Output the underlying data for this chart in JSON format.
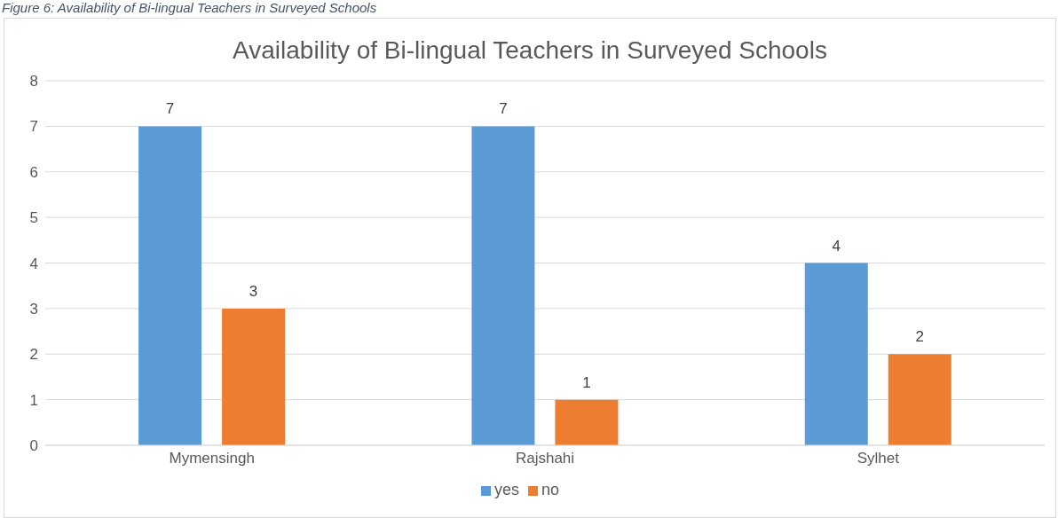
{
  "chart_data": {
    "type": "bar",
    "title": "Availability of Bi-lingual Teachers in Surveyed Schools",
    "annotations": [
      "Figure 6: Availability of Bi-lingual Teachers in Surveyed Schools"
    ],
    "categories": [
      "Mymensingh",
      "Rajshahi",
      "Sylhet"
    ],
    "series": [
      {
        "name": "yes",
        "color": "#5b9bd5",
        "values": [
          7,
          7,
          4
        ]
      },
      {
        "name": "no",
        "color": "#ed7d31",
        "values": [
          3,
          1,
          2
        ]
      }
    ],
    "ylim": [
      0,
      8
    ],
    "yticks": [
      0,
      1,
      2,
      3,
      4,
      5,
      6,
      7,
      8
    ],
    "grid": "y",
    "legend": "bottom",
    "data_labels": true
  }
}
